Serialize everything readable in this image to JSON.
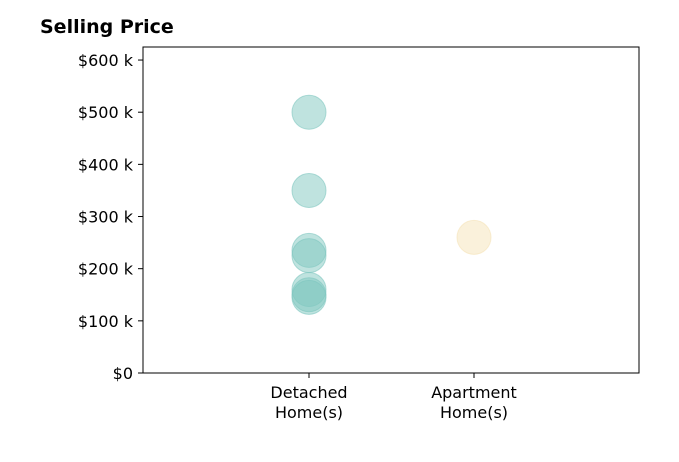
{
  "chart_data": {
    "type": "scatter",
    "title": "Selling Price",
    "xlabel": "",
    "ylabel": "",
    "categories": [
      "Detached\nHome(s)",
      "Apartment\nHome(s)"
    ],
    "ylim": [
      0,
      625000
    ],
    "yticks": [
      0,
      100000,
      200000,
      300000,
      400000,
      500000,
      600000
    ],
    "ytick_labels": [
      "$0",
      "$100 k",
      "$200 k",
      "$300 k",
      "$400 k",
      "$500 k",
      "$600 k"
    ],
    "grid": false,
    "series": [
      {
        "category": "Detached\nHome(s)",
        "color": "#7fc7bf",
        "values": [
          500000,
          350000,
          235000,
          225000,
          160000,
          150000,
          145000
        ]
      },
      {
        "category": "Apartment\nHome(s)",
        "color": "#f5e3b8",
        "values": [
          260000
        ]
      }
    ]
  }
}
